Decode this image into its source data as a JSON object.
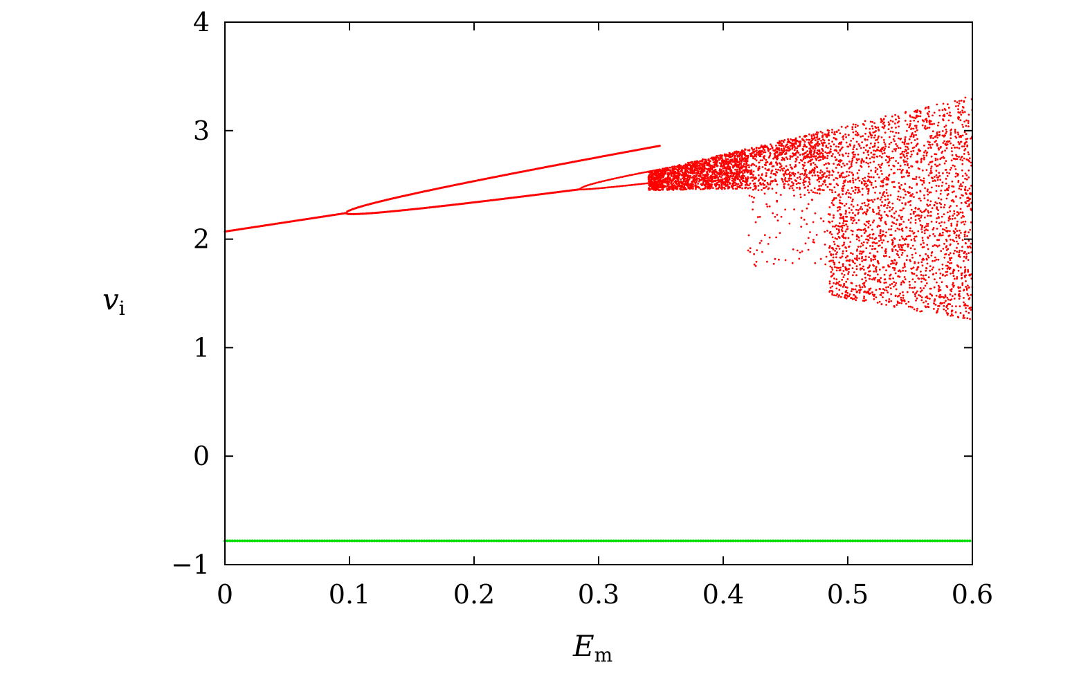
{
  "chart_data": {
    "type": "scatter",
    "xlabel": {
      "main": "E",
      "sub": "m"
    },
    "ylabel": {
      "main": "v",
      "sub": "i"
    },
    "xlim": [
      0,
      0.6
    ],
    "ylim": [
      -1,
      4
    ],
    "x_ticks": [
      0,
      0.1,
      0.2,
      0.3,
      0.4,
      0.5,
      0.6
    ],
    "x_tick_labels": [
      "0",
      "0.1",
      "0.2",
      "0.3",
      "0.4",
      "0.5",
      "0.6"
    ],
    "y_ticks": [
      -1,
      0,
      1,
      2,
      3,
      4
    ],
    "y_tick_labels": [
      "−1",
      "0",
      "1",
      "2",
      "3",
      "4"
    ],
    "grid": false,
    "legend": false,
    "series": [
      {
        "color": "#ff0000",
        "description_points": [
          {
            "x": 0.0,
            "y": 2.07
          },
          {
            "x": 0.1,
            "y": 2.24
          },
          {
            "x": 0.2,
            "y": 2.47
          },
          {
            "x": 0.3,
            "y": 2.65
          },
          {
            "x": 0.35,
            "y": 2.78
          },
          {
            "x": 0.4,
            "y": 2.95
          },
          {
            "x": 0.5,
            "y": 3.12
          },
          {
            "x": 0.6,
            "y": 3.32
          }
        ],
        "lower_branch_points": [
          {
            "x": 0.1,
            "y": 2.23
          },
          {
            "x": 0.2,
            "y": 2.32
          },
          {
            "x": 0.29,
            "y": 2.42
          },
          {
            "x": 0.35,
            "y": 2.5
          },
          {
            "x": 0.4,
            "y": 2.5
          }
        ],
        "chaotic_band": {
          "x_range": [
            0.35,
            0.6
          ],
          "y_range": [
            1.3,
            3.35
          ]
        }
      },
      {
        "color": "#00dd00",
        "points": [
          {
            "x": 0.0,
            "y": -0.78
          },
          {
            "x": 0.6,
            "y": -0.78
          }
        ]
      }
    ]
  }
}
